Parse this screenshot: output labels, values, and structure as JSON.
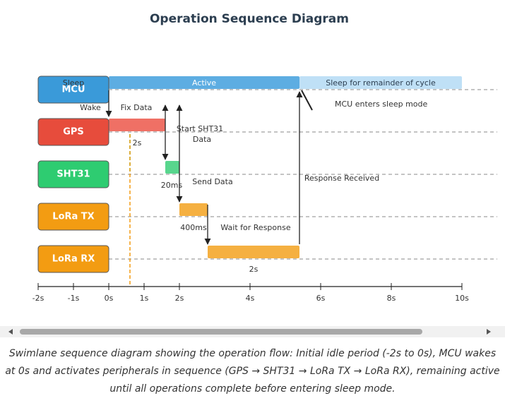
{
  "title": "Operation Sequence Diagram",
  "axis": {
    "xlim": [
      -2,
      10
    ],
    "ticks": [
      {
        "value": -2,
        "label": "-2s"
      },
      {
        "value": -1,
        "label": "-1s"
      },
      {
        "value": 0,
        "label": "0s"
      },
      {
        "value": 1,
        "label": "1s"
      },
      {
        "value": 2,
        "label": "2s"
      },
      {
        "value": 4,
        "label": "4s"
      },
      {
        "value": 6,
        "label": "6s"
      },
      {
        "value": 8,
        "label": "8s"
      },
      {
        "value": 10,
        "label": "10s"
      }
    ]
  },
  "lanes": [
    {
      "label": "MCU",
      "note": "Sleep",
      "color": "#3a9ad9",
      "segments": [
        {
          "label": "Active",
          "start": 0,
          "end": 5.4,
          "color": "#5dade2"
        },
        {
          "label": "Sleep for remainder of cycle",
          "start": 5.4,
          "end": 10,
          "color": "#bfe0f6"
        }
      ]
    },
    {
      "label": "GPS",
      "color": "#e74c3c",
      "segments": [
        {
          "start": 0,
          "end": 1.6,
          "color": "#ef7065"
        }
      ]
    },
    {
      "label": "SHT31",
      "color": "#2ecc71",
      "segments": [
        {
          "start": 1.6,
          "end": 2,
          "color": "#58d68d"
        }
      ]
    },
    {
      "label": "LoRa TX",
      "color": "#f39c12",
      "segments": [
        {
          "start": 2,
          "end": 2.8,
          "color": "#f5b041"
        }
      ]
    },
    {
      "label": "LoRa RX",
      "color": "#f39c12",
      "segments": [
        {
          "start": 2.8,
          "end": 5.4,
          "color": "#f5b041"
        }
      ]
    }
  ],
  "markers": [
    {
      "time": 0.6,
      "color": "#2ecc71"
    },
    {
      "time": 0.6,
      "color": "#f39c12"
    }
  ],
  "annotations": [
    "Wake",
    "Fix Data",
    "2s",
    "Start SHT31",
    "Data",
    "20ms",
    "Send Data",
    "Response Received",
    "400ms",
    "Wait for Response",
    "2s",
    "MCU enters sleep mode"
  ],
  "caption": "Swimlane sequence diagram showing the operation flow: Initial idle period (-2s to 0s), MCU wakes at 0s and activates peripherals in sequence (GPS → SHT31 → LoRa TX → LoRa RX), remaining active until all operations complete before entering sleep mode."
}
